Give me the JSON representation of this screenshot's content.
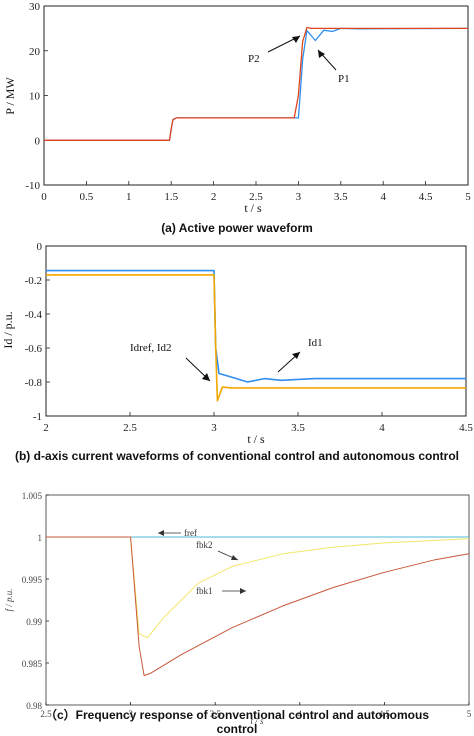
{
  "colors": {
    "p1": "#2f8ff0",
    "p2": "#e0461c",
    "id1": "#2f8ff0",
    "idref": "#f2a600",
    "fref": "#4fb8d8",
    "fbk2": "#f2e66a",
    "fbk1": "#c8583a"
  },
  "chart_data": [
    {
      "type": "line",
      "caption": "(a) Active power waveform",
      "xlabel": "t / s",
      "ylabel": "P / MW",
      "xlim": [
        0,
        5
      ],
      "ylim": [
        -10,
        30
      ],
      "xticks": [
        "0",
        "0.5",
        "1",
        "1.5",
        "2",
        "2.5",
        "3",
        "3.5",
        "4",
        "4.5",
        "5"
      ],
      "yticks": [
        "-10",
        "0",
        "10",
        "20",
        "30"
      ],
      "series": [
        {
          "name": "P1",
          "x": [
            0,
            1.48,
            1.5,
            1.52,
            1.56,
            3.0,
            3.02,
            3.05,
            3.1,
            3.2,
            3.3,
            3.4,
            3.5,
            3.7,
            5.0
          ],
          "y": [
            0,
            0,
            2.5,
            4.6,
            5.0,
            5.0,
            10.0,
            18.0,
            24.5,
            22.3,
            24.6,
            24.3,
            25.0,
            24.9,
            25.0
          ]
        },
        {
          "name": "P2",
          "x": [
            0,
            1.48,
            1.5,
            1.52,
            1.56,
            2.95,
            3.0,
            3.05,
            3.1,
            3.15,
            3.3,
            5.0
          ],
          "y": [
            0,
            0,
            2.5,
            4.6,
            5.0,
            5.0,
            10.0,
            22.0,
            25.2,
            25.0,
            25.0,
            25.0
          ]
        }
      ],
      "annotations": [
        "P2",
        "P1"
      ]
    },
    {
      "type": "line",
      "caption": "(b) d-axis current waveforms of conventional control and autonomous control",
      "xlabel": "t / s",
      "ylabel": "Id / p.u.",
      "xlim": [
        2,
        4.5
      ],
      "ylim": [
        -1,
        0
      ],
      "xticks": [
        "2",
        "2.5",
        "3",
        "3.5",
        "4",
        "4.5"
      ],
      "yticks": [
        "0",
        "-0.2",
        "-0.4",
        "-0.6",
        "-0.8",
        "-1"
      ],
      "series": [
        {
          "name": "Id1",
          "x": [
            2,
            3.0,
            3.01,
            3.03,
            3.1,
            3.2,
            3.3,
            3.4,
            3.6,
            4.5
          ],
          "y": [
            -0.145,
            -0.145,
            -0.6,
            -0.75,
            -0.77,
            -0.8,
            -0.78,
            -0.79,
            -0.78,
            -0.78
          ]
        },
        {
          "name": "Idref, Id2",
          "x": [
            2,
            3.0,
            3.01,
            3.02,
            3.05,
            3.1,
            4.5
          ],
          "y": [
            -0.17,
            -0.17,
            -0.6,
            -0.91,
            -0.83,
            -0.835,
            -0.835
          ]
        }
      ],
      "annotations": [
        "Idref, Id2",
        "Id1"
      ]
    },
    {
      "type": "line",
      "caption": "（c）Frequency response of conventional control and autonomous control",
      "xlabel": "t / s",
      "ylabel": "f / p.u.",
      "xlim": [
        2.5,
        5
      ],
      "ylim": [
        0.98,
        1.005
      ],
      "xticks": [
        "2.5",
        "3",
        "3.5",
        "4",
        "4.5",
        "5"
      ],
      "yticks": [
        "1.005",
        "1",
        "0.995",
        "0.99",
        "0.985",
        "0.98"
      ],
      "series": [
        {
          "name": "fref",
          "x": [
            2.5,
            5
          ],
          "y": [
            1.0,
            1.0
          ]
        },
        {
          "name": "fbk2",
          "x": [
            2.5,
            3.0,
            3.05,
            3.1,
            3.2,
            3.4,
            3.6,
            3.9,
            4.2,
            4.5,
            4.8,
            5.0
          ],
          "y": [
            1.0,
            1.0,
            0.9885,
            0.988,
            0.9905,
            0.9945,
            0.9965,
            0.998,
            0.9988,
            0.9993,
            0.9996,
            0.9998
          ]
        },
        {
          "name": "fbk1",
          "x": [
            2.5,
            3.0,
            3.05,
            3.08,
            3.12,
            3.3,
            3.6,
            3.9,
            4.2,
            4.5,
            4.8,
            5.0
          ],
          "y": [
            1.0,
            1.0,
            0.987,
            0.9835,
            0.9838,
            0.986,
            0.9892,
            0.9918,
            0.994,
            0.9958,
            0.9973,
            0.998
          ]
        }
      ],
      "annotations": [
        "fref",
        "fbk2",
        "fbk1"
      ]
    }
  ]
}
